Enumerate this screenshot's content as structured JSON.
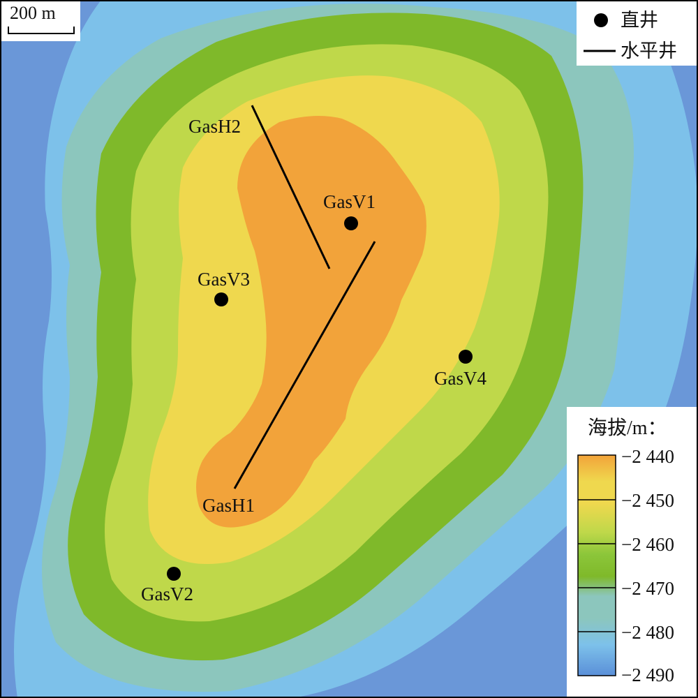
{
  "scale_bar": {
    "label": "200 m"
  },
  "well_legend": {
    "vertical_label": "直井",
    "horizontal_label": "水平井"
  },
  "wells": {
    "vertical": [
      {
        "name": "GasV1"
      },
      {
        "name": "GasV2"
      },
      {
        "name": "GasV3"
      },
      {
        "name": "GasV4"
      }
    ],
    "horizontal": [
      {
        "name": "GasH1"
      },
      {
        "name": "GasH2"
      }
    ]
  },
  "elevation_legend": {
    "title": "海拔/m：",
    "ticks": [
      "−2 440",
      "−2 450",
      "−2 460",
      "−2 470",
      "−2 480",
      "−2 490"
    ]
  },
  "colors": {
    "band_lt_2440": "#f2a33a",
    "band_2440_2450": "#efd84e",
    "band_2450_2460": "#bfd84a",
    "band_2460_2470": "#7fb92a",
    "band_2470_2480": "#8cc6bd",
    "band_2480_2490": "#7dc1ea",
    "band_gt_2490": "#6a97d8",
    "well_marker": "#000000"
  }
}
